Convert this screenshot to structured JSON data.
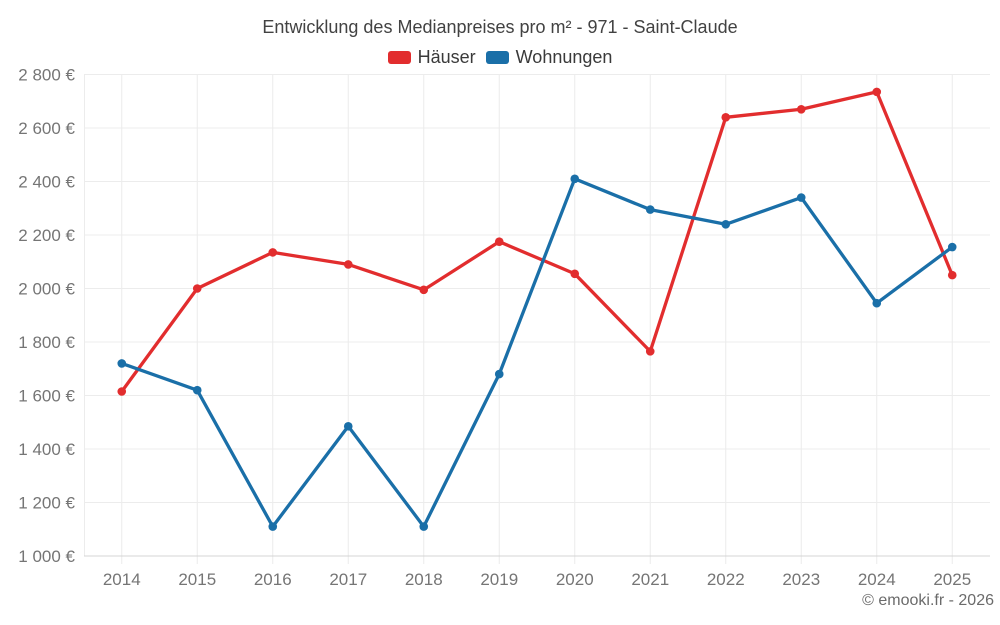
{
  "header": {
    "title": "Entwicklung des Medianpreises pro m² - 971 - Saint-Claude"
  },
  "legend": {
    "items": [
      {
        "label": "Häuser",
        "color": "#e22d2e"
      },
      {
        "label": "Wohnungen",
        "color": "#1a6fa8"
      }
    ]
  },
  "footer": {
    "copyright": "© emooki.fr - 2026"
  },
  "chart_data": {
    "type": "line",
    "title": "Entwicklung des Medianpreises pro m² - 971 - Saint-Claude",
    "categories": [
      "2014",
      "2015",
      "2016",
      "2017",
      "2018",
      "2019",
      "2020",
      "2021",
      "2022",
      "2023",
      "2024",
      "2025"
    ],
    "series": [
      {
        "name": "Häuser",
        "color": "#e22d2e",
        "values": [
          1615,
          2000,
          2135,
          2090,
          1995,
          2175,
          2055,
          1765,
          2640,
          2670,
          2735,
          2050
        ]
      },
      {
        "name": "Wohnungen",
        "color": "#1a6fa8",
        "values": [
          1720,
          1620,
          1110,
          1485,
          1110,
          1680,
          2410,
          2295,
          2240,
          2340,
          1945,
          2155
        ]
      }
    ],
    "xlabel": "",
    "ylabel": "",
    "ylim": [
      1000,
      2800
    ],
    "y_tick_step": 200,
    "y_unit": "€",
    "grid": true,
    "legend_position": "top"
  },
  "style": {
    "grid_color": "#ececec",
    "axis_line_color": "#d4d4d4",
    "tick_text_color": "#757575",
    "title_text_color": "#424242",
    "copyright_text_color": "#6b6b6b"
  }
}
